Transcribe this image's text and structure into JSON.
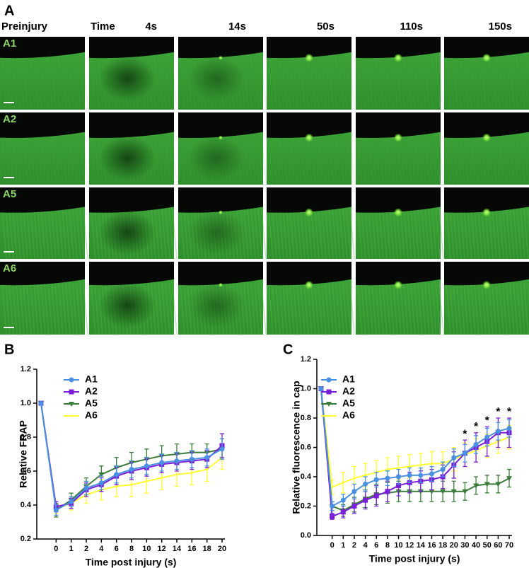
{
  "panels": {
    "a": "A",
    "b": "B",
    "c": "C"
  },
  "images": {
    "column_headers": [
      "Preinjury",
      "Time",
      "4s",
      "14s",
      "50s",
      "110s",
      "150s"
    ],
    "row_labels": [
      "A1",
      "A2",
      "A5",
      "A6"
    ]
  },
  "chart_data": [
    {
      "type": "line",
      "ylabel": "Relative FRAP",
      "xlabel": "Time post injury (s)",
      "categories": [
        null,
        "0",
        "1",
        "2",
        "4",
        "6",
        "8",
        "10",
        "12",
        "14",
        "16",
        "18",
        "20"
      ],
      "ylim": [
        0.2,
        1.2
      ],
      "yticks": [
        0.2,
        0.4,
        0.6,
        0.8,
        {
          "value": 1,
          "label": "1.0"
        },
        1.2
      ],
      "series": [
        {
          "name": "A1",
          "color": "#4a90e2",
          "marker": "circle",
          "values": [
            1,
            0.37,
            0.42,
            0.5,
            0.53,
            0.58,
            0.61,
            0.63,
            0.65,
            0.66,
            0.67,
            0.68,
            0.73
          ],
          "errors": [
            0,
            0.03,
            0.03,
            0.04,
            0.04,
            0.05,
            0.05,
            0.05,
            0.05,
            0.05,
            0.05,
            0.05,
            0.06
          ]
        },
        {
          "name": "A2",
          "color": "#7b1fd6",
          "marker": "square",
          "values": [
            1,
            0.39,
            0.41,
            0.49,
            0.52,
            0.57,
            0.6,
            0.62,
            0.64,
            0.65,
            0.66,
            0.67,
            0.75
          ],
          "errors": [
            0,
            0.03,
            0.03,
            0.04,
            0.04,
            0.05,
            0.05,
            0.05,
            0.05,
            0.05,
            0.05,
            0.05,
            0.07
          ]
        },
        {
          "name": "A5",
          "color": "#3a7d3a",
          "marker": "triangle",
          "values": [
            1,
            0.37,
            0.43,
            0.51,
            0.58,
            0.62,
            0.65,
            0.67,
            0.69,
            0.7,
            0.71,
            0.71,
            0.73
          ],
          "errors": [
            0,
            0.04,
            0.04,
            0.05,
            0.05,
            0.06,
            0.06,
            0.06,
            0.06,
            0.06,
            0.05,
            0.05,
            0.06
          ]
        },
        {
          "name": "A6",
          "color": "#ffff33",
          "marker": "none",
          "values": [
            1,
            0.38,
            0.41,
            0.46,
            0.49,
            0.51,
            0.52,
            0.54,
            0.56,
            0.58,
            0.59,
            0.61,
            0.68
          ],
          "errors": [
            0,
            0.03,
            0.04,
            0.05,
            0.06,
            0.06,
            0.07,
            0.07,
            0.07,
            0.07,
            0.07,
            0.07,
            0.07
          ]
        }
      ]
    },
    {
      "type": "line",
      "ylabel": "Relative fluorescence in cap",
      "xlabel": "Time post injury (s)",
      "categories": [
        null,
        "0",
        "1",
        "2",
        "4",
        "6",
        "8",
        "10",
        "12",
        "14",
        "16",
        "18",
        "20",
        "30",
        "40",
        "50",
        "60",
        "70"
      ],
      "markers": [
        null,
        null,
        null,
        null,
        null,
        null,
        null,
        null,
        null,
        null,
        null,
        null,
        null,
        "*",
        "*",
        "*",
        "*",
        "*"
      ],
      "ylim": [
        0,
        1.2
      ],
      "yticks": [
        {
          "value": 0,
          "label": "0.0"
        },
        0.2,
        0.4,
        0.6,
        0.8,
        {
          "value": 1,
          "label": "1.0"
        },
        1.2
      ],
      "series": [
        {
          "name": "A1",
          "color": "#4a90e2",
          "marker": "circle",
          "values": [
            1,
            0.2,
            0.24,
            0.3,
            0.35,
            0.38,
            0.39,
            0.4,
            0.41,
            0.41,
            0.42,
            0.45,
            0.53,
            0.56,
            0.62,
            0.67,
            0.71,
            0.73
          ],
          "errors": [
            0,
            0.03,
            0.04,
            0.05,
            0.05,
            0.05,
            0.05,
            0.05,
            0.05,
            0.05,
            0.05,
            0.05,
            0.06,
            0.06,
            0.06,
            0.06,
            0.06,
            0.06
          ]
        },
        {
          "name": "A2",
          "color": "#7b1fd6",
          "marker": "square",
          "values": [
            1,
            0.13,
            0.16,
            0.2,
            0.24,
            0.27,
            0.3,
            0.34,
            0.36,
            0.37,
            0.38,
            0.4,
            0.48,
            0.56,
            0.6,
            0.64,
            0.7,
            0.7
          ],
          "errors": [
            0,
            0.02,
            0.04,
            0.05,
            0.06,
            0.07,
            0.07,
            0.07,
            0.07,
            0.07,
            0.07,
            0.08,
            0.09,
            0.09,
            0.1,
            0.1,
            0.1,
            0.1
          ]
        },
        {
          "name": "A5",
          "color": "#3a7d3a",
          "marker": "triangle",
          "values": [
            1,
            0.2,
            0.17,
            0.21,
            0.25,
            0.28,
            0.29,
            0.3,
            0.3,
            0.3,
            0.3,
            0.3,
            0.3,
            0.3,
            0.34,
            0.35,
            0.35,
            0.39
          ],
          "errors": [
            0,
            0.03,
            0.04,
            0.05,
            0.06,
            0.07,
            0.07,
            0.07,
            0.07,
            0.07,
            0.07,
            0.07,
            0.07,
            0.06,
            0.06,
            0.06,
            0.06,
            0.06
          ]
        },
        {
          "name": "A6",
          "color": "#ffff33",
          "marker": "none",
          "values": [
            1,
            0.33,
            0.36,
            0.39,
            0.41,
            0.43,
            0.45,
            0.46,
            0.47,
            0.48,
            0.49,
            0.49,
            0.52,
            0.55,
            0.58,
            0.61,
            0.64,
            0.67
          ],
          "errors": [
            0,
            0.05,
            0.07,
            0.08,
            0.08,
            0.08,
            0.08,
            0.08,
            0.08,
            0.08,
            0.08,
            0.08,
            0.08,
            0.08,
            0.08,
            0.08,
            0.08,
            0.08
          ]
        }
      ]
    }
  ]
}
